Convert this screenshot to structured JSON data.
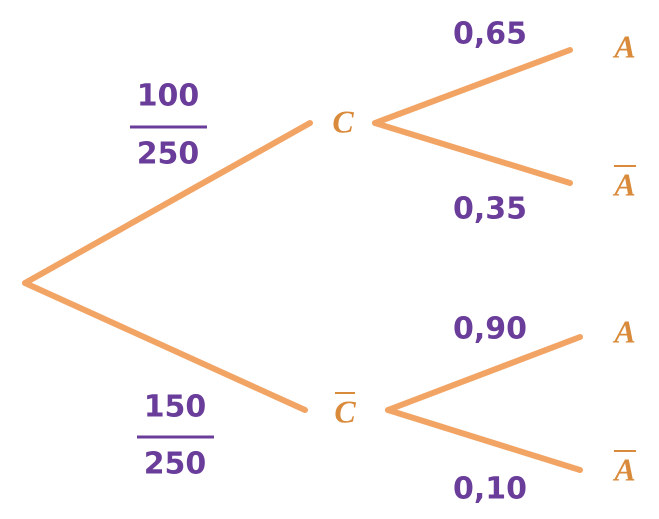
{
  "branches": [
    {
      "probability": {
        "numerator": "100",
        "denominator": "250"
      },
      "node": "C",
      "children": [
        {
          "probability": "0,65",
          "node": "A"
        },
        {
          "probability": "0,35",
          "node": "A"
        }
      ]
    },
    {
      "probability": {
        "numerator": "150",
        "denominator": "250"
      },
      "node": "C",
      "children": [
        {
          "probability": "0,90",
          "node": "A"
        },
        {
          "probability": "0,10",
          "node": "A"
        }
      ]
    }
  ]
}
